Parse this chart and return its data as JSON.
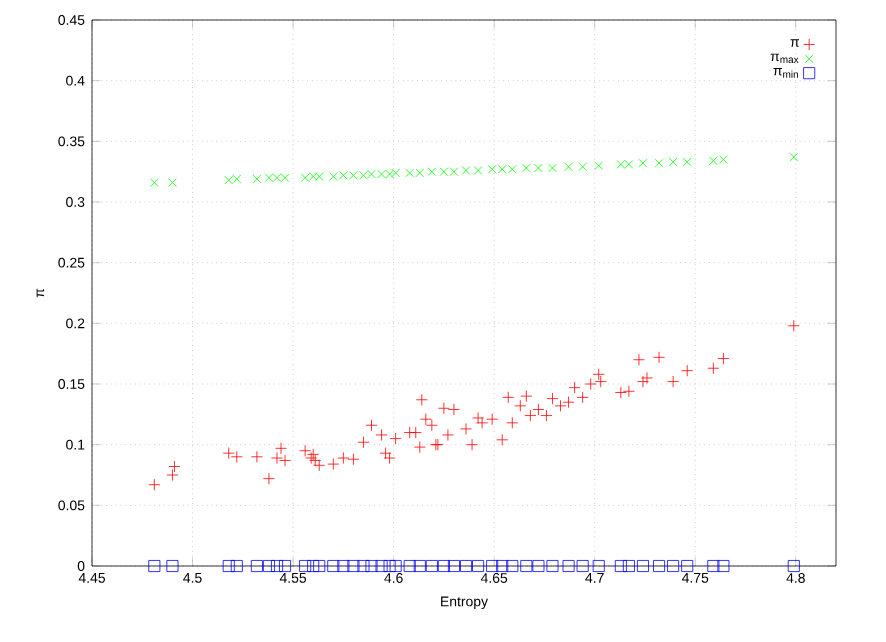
{
  "chart_data": {
    "type": "scatter",
    "xlabel": "Entropy",
    "ylabel": "π",
    "xlim": [
      4.45,
      4.82
    ],
    "ylim": [
      0,
      0.45
    ],
    "xticks": [
      4.45,
      4.5,
      4.55,
      4.6,
      4.65,
      4.7,
      4.75,
      4.8
    ],
    "yticks": [
      0,
      0.05,
      0.1,
      0.15,
      0.2,
      0.25,
      0.3,
      0.35,
      0.4,
      0.45
    ],
    "grid": true,
    "legend": "top right",
    "series": [
      {
        "name": "π",
        "color": "#ff0000",
        "marker": "plus",
        "x": [
          4.481,
          4.49,
          4.491,
          4.518,
          4.522,
          4.532,
          4.538,
          4.542,
          4.544,
          4.546,
          4.556,
          4.559,
          4.56,
          4.561,
          4.563,
          4.57,
          4.575,
          4.58,
          4.585,
          4.589,
          4.594,
          4.596,
          4.598,
          4.601,
          4.608,
          4.611,
          4.613,
          4.614,
          4.616,
          4.619,
          4.621,
          4.622,
          4.625,
          4.627,
          4.63,
          4.636,
          4.639,
          4.642,
          4.644,
          4.649,
          4.654,
          4.657,
          4.659,
          4.663,
          4.666,
          4.668,
          4.672,
          4.676,
          4.679,
          4.683,
          4.687,
          4.69,
          4.694,
          4.698,
          4.702,
          4.703,
          4.713,
          4.717,
          4.722,
          4.724,
          4.726,
          4.732,
          4.739,
          4.746,
          4.759,
          4.764,
          4.799
        ],
        "values": [
          0.067,
          0.075,
          0.082,
          0.093,
          0.09,
          0.09,
          0.072,
          0.089,
          0.097,
          0.087,
          0.095,
          0.089,
          0.092,
          0.087,
          0.083,
          0.084,
          0.089,
          0.088,
          0.102,
          0.116,
          0.108,
          0.093,
          0.089,
          0.105,
          0.11,
          0.11,
          0.098,
          0.137,
          0.121,
          0.116,
          0.1,
          0.1,
          0.13,
          0.108,
          0.129,
          0.113,
          0.1,
          0.122,
          0.118,
          0.121,
          0.104,
          0.139,
          0.118,
          0.132,
          0.14,
          0.124,
          0.129,
          0.124,
          0.138,
          0.132,
          0.135,
          0.147,
          0.139,
          0.15,
          0.158,
          0.152,
          0.143,
          0.144,
          0.17,
          0.152,
          0.155,
          0.172,
          0.152,
          0.161,
          0.163,
          0.171,
          0.198
        ]
      },
      {
        "name": "π$_{max}$",
        "color": "#00ff00",
        "marker": "cross",
        "x": [
          4.481,
          4.49,
          4.518,
          4.522,
          4.532,
          4.538,
          4.542,
          4.546,
          4.556,
          4.56,
          4.563,
          4.57,
          4.575,
          4.58,
          4.585,
          4.589,
          4.594,
          4.598,
          4.601,
          4.608,
          4.613,
          4.619,
          4.625,
          4.63,
          4.636,
          4.642,
          4.649,
          4.654,
          4.659,
          4.666,
          4.672,
          4.679,
          4.687,
          4.694,
          4.702,
          4.713,
          4.717,
          4.724,
          4.732,
          4.739,
          4.746,
          4.759,
          4.764,
          4.799
        ],
        "values": [
          0.316,
          0.316,
          0.318,
          0.319,
          0.319,
          0.32,
          0.32,
          0.32,
          0.32,
          0.321,
          0.321,
          0.321,
          0.322,
          0.322,
          0.322,
          0.323,
          0.323,
          0.323,
          0.324,
          0.324,
          0.324,
          0.325,
          0.325,
          0.325,
          0.326,
          0.326,
          0.327,
          0.327,
          0.327,
          0.328,
          0.328,
          0.328,
          0.329,
          0.329,
          0.33,
          0.331,
          0.331,
          0.332,
          0.332,
          0.333,
          0.333,
          0.334,
          0.335,
          0.337
        ]
      },
      {
        "name": "π$_{min}$",
        "color": "#0000ff",
        "marker": "square",
        "x": [
          4.481,
          4.49,
          4.518,
          4.522,
          4.532,
          4.538,
          4.542,
          4.546,
          4.556,
          4.56,
          4.563,
          4.57,
          4.575,
          4.58,
          4.585,
          4.589,
          4.594,
          4.598,
          4.601,
          4.608,
          4.613,
          4.619,
          4.625,
          4.63,
          4.636,
          4.642,
          4.649,
          4.654,
          4.659,
          4.666,
          4.672,
          4.679,
          4.687,
          4.694,
          4.702,
          4.713,
          4.717,
          4.724,
          4.732,
          4.739,
          4.746,
          4.759,
          4.764,
          4.799
        ],
        "values": [
          0,
          0,
          0,
          0,
          0,
          0,
          0,
          0,
          0,
          0,
          0,
          0,
          0,
          0,
          0,
          0,
          0,
          0,
          0,
          0,
          0,
          0,
          0,
          0,
          0,
          0,
          0,
          0,
          0,
          0,
          0,
          0,
          0,
          0,
          0,
          0,
          0,
          0,
          0,
          0,
          0,
          0,
          0,
          0
        ]
      }
    ]
  }
}
